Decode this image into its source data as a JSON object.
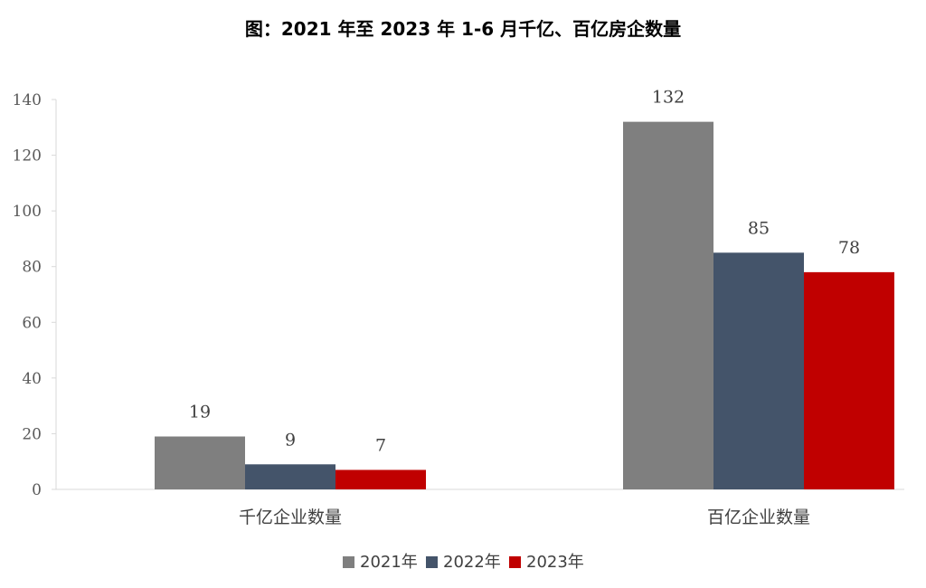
{
  "chart_data": {
    "type": "bar",
    "title": "图：2021 年至 2023 年 1-6 月千亿、百亿房企数量",
    "categories": [
      "千亿企业数量",
      "百亿企业数量"
    ],
    "series": [
      {
        "name": "2021年",
        "color": "#7f7f7f",
        "values": [
          19,
          132
        ]
      },
      {
        "name": "2022年",
        "color": "#44546a",
        "values": [
          9,
          85
        ]
      },
      {
        "name": "2023年",
        "color": "#c00000",
        "values": [
          7,
          78
        ]
      }
    ],
    "ylim": [
      0,
      140
    ],
    "yticks": [
      0,
      20,
      40,
      60,
      80,
      100,
      120,
      140
    ],
    "grid": false,
    "legend_position": "bottom"
  }
}
